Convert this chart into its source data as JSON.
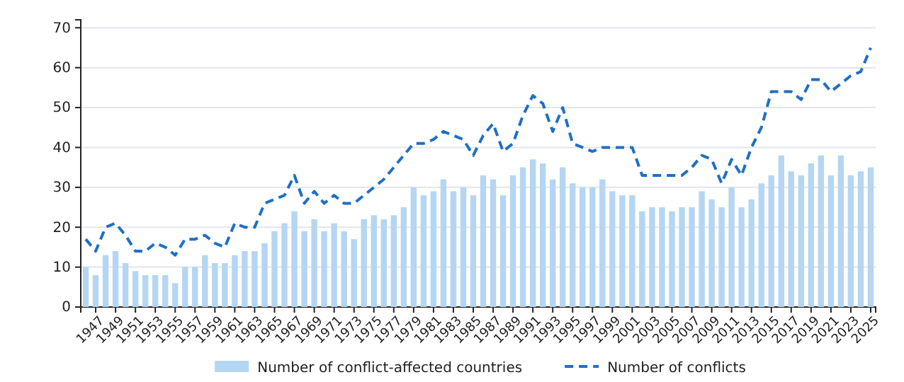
{
  "chart_data": {
    "type": "bar",
    "x": [
      1946,
      1947,
      1948,
      1949,
      1950,
      1951,
      1952,
      1953,
      1954,
      1955,
      1956,
      1957,
      1958,
      1959,
      1960,
      1961,
      1962,
      1963,
      1964,
      1965,
      1966,
      1967,
      1968,
      1969,
      1970,
      1971,
      1972,
      1973,
      1974,
      1975,
      1976,
      1977,
      1978,
      1979,
      1980,
      1981,
      1982,
      1983,
      1984,
      1985,
      1986,
      1987,
      1988,
      1989,
      1990,
      1991,
      1992,
      1993,
      1994,
      1995,
      1996,
      1997,
      1998,
      1999,
      2000,
      2001,
      2002,
      2003,
      2004,
      2005,
      2006,
      2007,
      2008,
      2009,
      2010,
      2011,
      2012,
      2013,
      2014,
      2015,
      2016,
      2017,
      2018,
      2019,
      2020,
      2021,
      2022,
      2023,
      2024,
      2025
    ],
    "series": [
      {
        "name": "Number of conflict-affected countries",
        "color": "#b5d6f2",
        "values": [
          10,
          8,
          13,
          14,
          11,
          9,
          8,
          8,
          8,
          6,
          10,
          10,
          13,
          11,
          11,
          13,
          14,
          14,
          16,
          19,
          21,
          24,
          19,
          22,
          19,
          21,
          19,
          17,
          22,
          23,
          22,
          23,
          25,
          30,
          28,
          29,
          32,
          29,
          30,
          28,
          33,
          32,
          28,
          33,
          35,
          37,
          36,
          32,
          35,
          31,
          30,
          30,
          32,
          29,
          28,
          28,
          24,
          25,
          25,
          24,
          25,
          25,
          29,
          27,
          25,
          30,
          25,
          27,
          31,
          33,
          38,
          34,
          33,
          36,
          38,
          33,
          38,
          33,
          34,
          35
        ]
      },
      {
        "name": "Number of conflicts",
        "type": "line",
        "line_style": "dashed",
        "color": "#1f6fc5",
        "values": [
          17,
          14,
          20,
          21,
          18,
          14,
          14,
          16,
          15,
          13,
          17,
          17,
          18,
          16,
          15,
          21,
          20,
          20,
          26,
          27,
          28,
          33,
          26,
          29,
          26,
          28,
          26,
          26,
          28,
          30,
          32,
          35,
          38,
          41,
          41,
          42,
          44,
          43,
          42,
          38,
          43,
          46,
          39,
          41,
          48,
          53,
          51,
          44,
          50,
          41,
          40,
          39,
          40,
          40,
          40,
          40,
          33,
          33,
          33,
          33,
          33,
          35,
          38,
          37,
          31,
          37,
          33,
          40,
          45,
          54,
          54,
          54,
          52,
          57,
          57,
          54,
          56,
          58,
          59,
          65
        ]
      }
    ],
    "xlim": [
      1945.5,
      2025.5
    ],
    "xticks": [
      1947,
      1949,
      1951,
      1953,
      1955,
      1957,
      1959,
      1961,
      1963,
      1965,
      1967,
      1969,
      1971,
      1973,
      1975,
      1977,
      1979,
      1981,
      1983,
      1985,
      1987,
      1989,
      1991,
      1993,
      1995,
      1997,
      1999,
      2001,
      2003,
      2005,
      2007,
      2009,
      2011,
      2013,
      2015,
      2017,
      2019,
      2021,
      2023,
      2025
    ],
    "ylim": [
      0,
      72
    ],
    "yticks": [
      0,
      10,
      20,
      30,
      40,
      50,
      60,
      70
    ],
    "grid": "y",
    "legend": "bottom"
  }
}
